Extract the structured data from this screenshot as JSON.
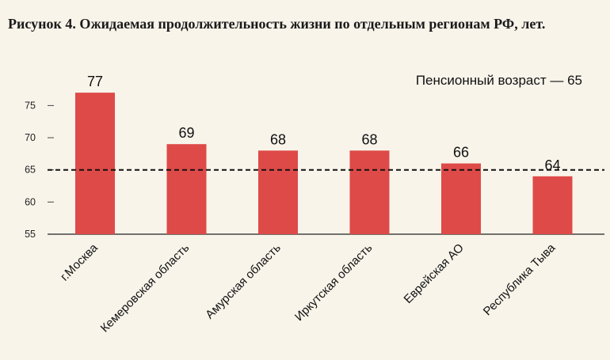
{
  "title": "Рисунок 4. Ожидаемая продолжительность жизни по отдельным регионам РФ, лет.",
  "chart_data": {
    "type": "bar",
    "categories": [
      "г.Москва",
      "Кемеровская область",
      "Амурская область",
      "Иркутская область",
      "Еврейская АО",
      "Республика Тыва"
    ],
    "values": [
      77,
      69,
      68,
      68,
      66,
      64
    ],
    "data_labels": [
      "77",
      "69",
      "68",
      "68",
      "66",
      "64"
    ],
    "ylim": [
      55,
      78
    ],
    "yticks": [
      55,
      60,
      65,
      70,
      75
    ],
    "reference_line": {
      "value": 65,
      "label": "Пенсионный возраст — 65",
      "style": "dashed"
    },
    "bar_color": "#de4a48",
    "grid": false
  }
}
